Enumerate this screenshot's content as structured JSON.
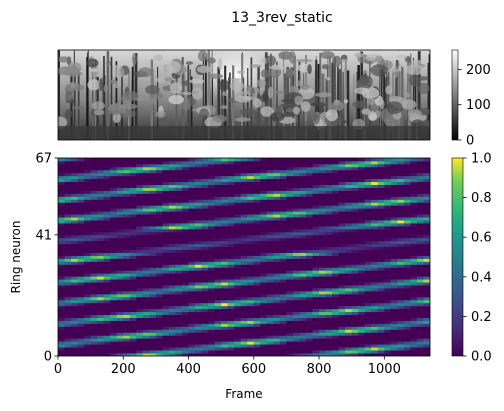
{
  "figure": {
    "title": "13_3rev_static"
  },
  "chart_data": [
    {
      "type": "image",
      "description_panel": "panoramic grayscale forest scene",
      "axes_visible": false,
      "colorbar": {
        "colormap": "gray",
        "range": [
          0,
          255
        ],
        "ticks": [
          0,
          100,
          200
        ],
        "tick_labels": [
          "0",
          "100",
          "200"
        ]
      }
    },
    {
      "type": "heatmap",
      "xlabel": "Frame",
      "ylabel": "Ring neuron",
      "xlim": [
        0,
        1140
      ],
      "ylim": [
        0,
        67
      ],
      "xticks": [
        0,
        200,
        400,
        600,
        800,
        1000
      ],
      "xtick_labels": [
        "0",
        "200",
        "400",
        "600",
        "800",
        "1000"
      ],
      "yticks": [
        0,
        41,
        67
      ],
      "ytick_labels": [
        "0",
        "41",
        "67"
      ],
      "colormap": "viridis",
      "colorbar": {
        "range": [
          0.0,
          1.0
        ],
        "ticks": [
          0.0,
          0.2,
          0.4,
          0.6,
          0.8,
          1.0
        ],
        "tick_labels": [
          "0.0",
          "0.2",
          "0.4",
          "0.6",
          "0.8",
          "1.0"
        ]
      },
      "pattern": {
        "frames_per_column": 20,
        "band_slope_neurons_per_frame": 0.013,
        "band_period_neurons": 7,
        "quiet_band": [
          35,
          42
        ]
      }
    }
  ]
}
